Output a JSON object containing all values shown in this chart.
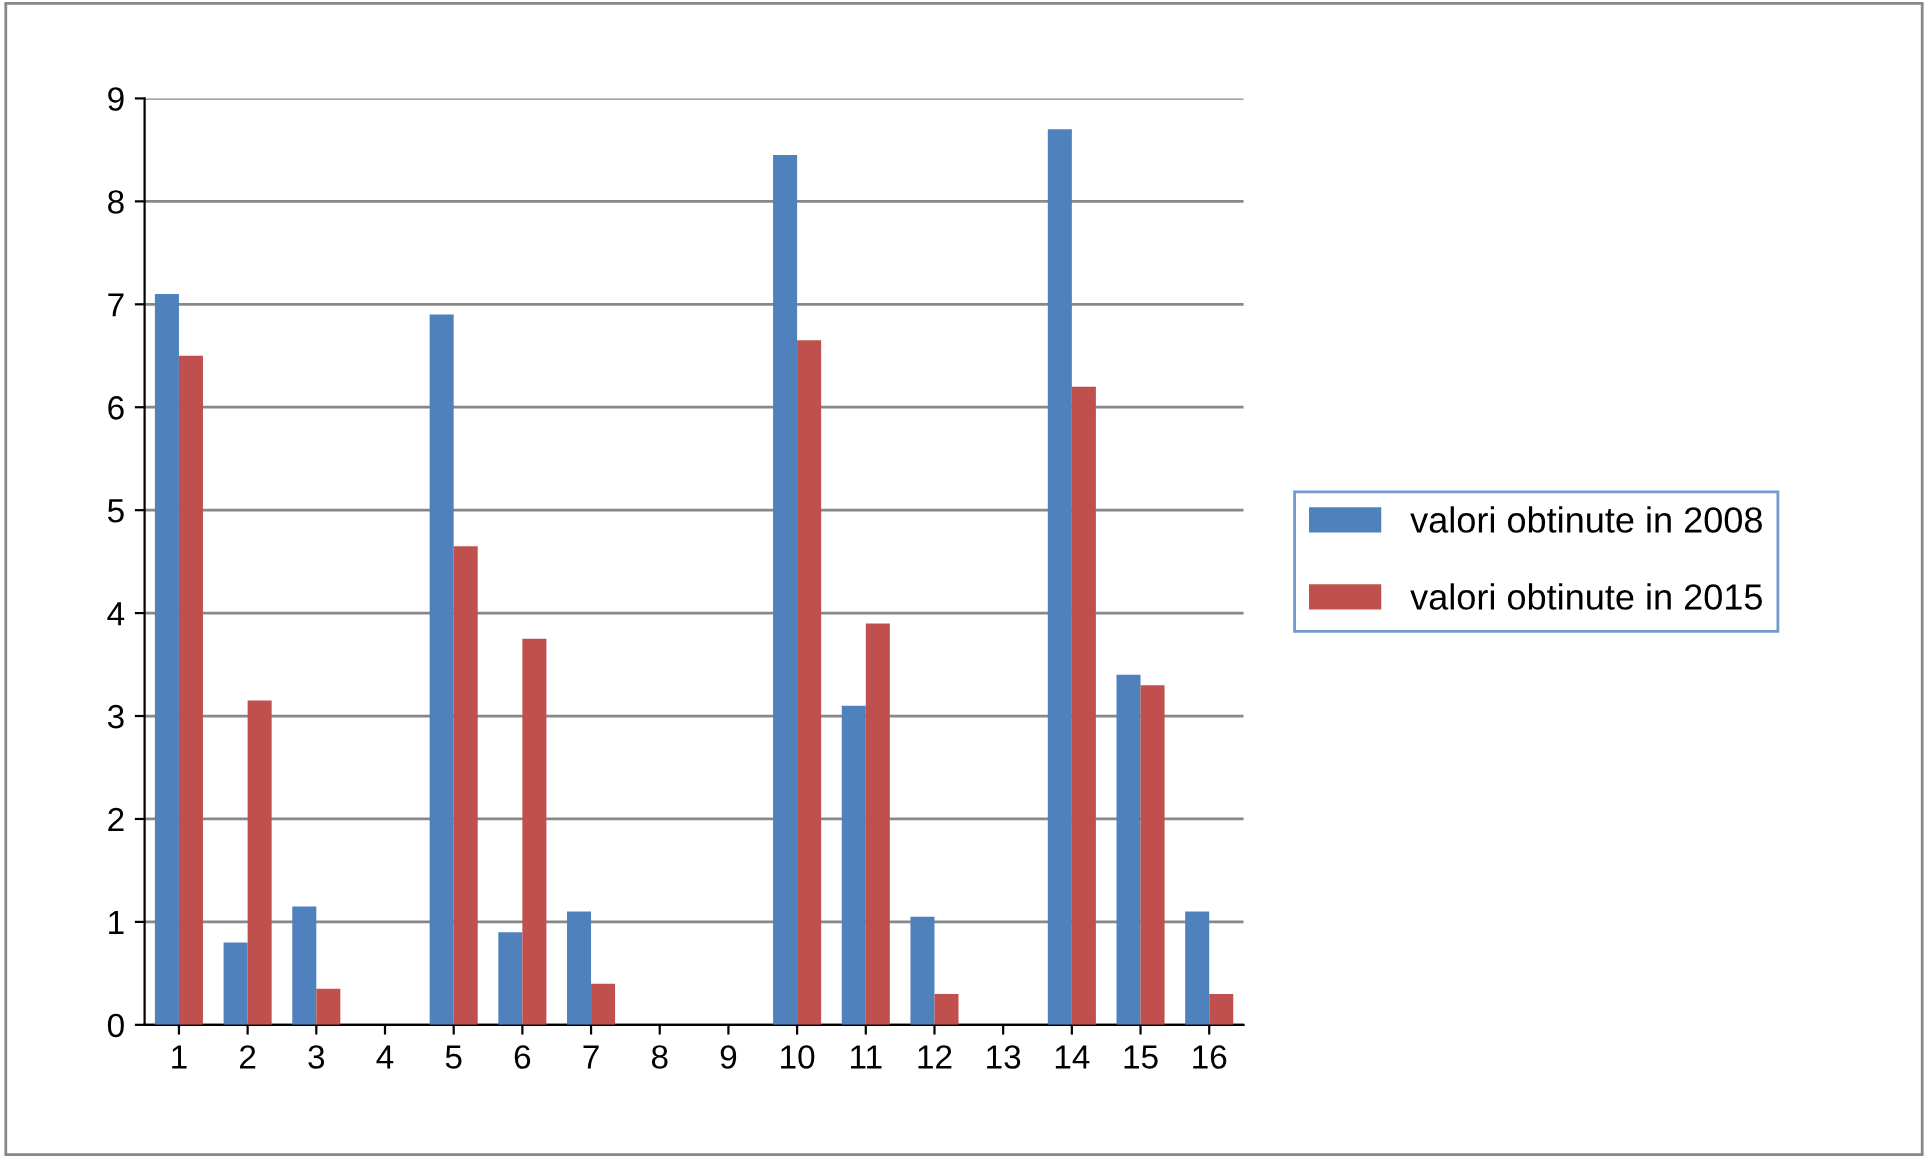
{
  "chart_data": {
    "type": "bar",
    "categories": [
      "1",
      "2",
      "3",
      "4",
      "5",
      "6",
      "7",
      "8",
      "9",
      "10",
      "11",
      "12",
      "13",
      "14",
      "15",
      "16"
    ],
    "series": [
      {
        "name": "valori obtinute in 2008",
        "color": "#4f81bd",
        "values": [
          7.1,
          0.8,
          1.15,
          0,
          6.9,
          0.9,
          1.1,
          0,
          0,
          8.45,
          3.1,
          1.05,
          0,
          8.7,
          3.4,
          1.1
        ]
      },
      {
        "name": "valori obtinute in 2015",
        "color": "#c0504d",
        "values": [
          6.5,
          3.15,
          0.35,
          0,
          4.65,
          3.75,
          0.4,
          0,
          0,
          6.65,
          3.9,
          0.3,
          0,
          6.2,
          3.3,
          0.3
        ]
      }
    ],
    "ylim": [
      0,
      9
    ],
    "yticks": [
      0,
      1,
      2,
      3,
      4,
      5,
      6,
      7,
      8,
      9
    ],
    "grid": "y",
    "legend": "right"
  }
}
